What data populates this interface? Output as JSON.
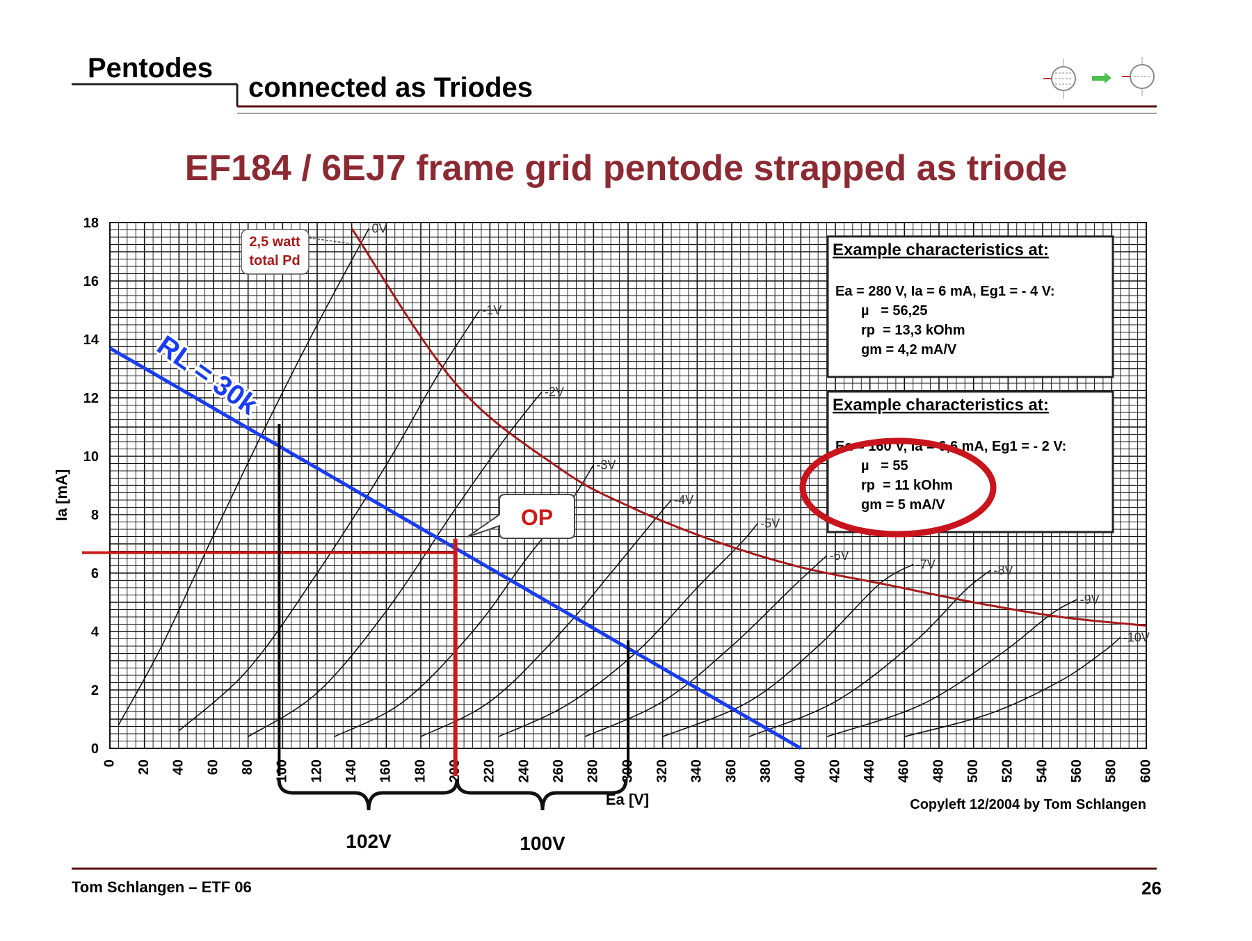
{
  "header": {
    "title": "Pentodes",
    "subtitle": "connected as Triodes",
    "logo_icon": "pentode-to-triode-icon"
  },
  "chart_data": {
    "type": "line",
    "title": "EF184 / 6EJ7 frame grid pentode strapped as triode",
    "xlabel": "Ea [V]",
    "ylabel": "Ia [mA]",
    "xlim": [
      0,
      600
    ],
    "ylim": [
      0,
      18
    ],
    "x_ticks": [
      0,
      20,
      40,
      60,
      80,
      100,
      120,
      140,
      160,
      180,
      200,
      220,
      240,
      260,
      280,
      300,
      320,
      340,
      360,
      380,
      400,
      420,
      440,
      460,
      480,
      500,
      520,
      540,
      560,
      580,
      600
    ],
    "y_ticks": [
      0,
      2,
      4,
      6,
      8,
      10,
      12,
      14,
      16,
      18
    ],
    "grid": true,
    "series": [
      {
        "name": "0V",
        "color": "#111111",
        "x": [
          5,
          30,
          60,
          90,
          120,
          150
        ],
        "y": [
          0.8,
          3.5,
          7.3,
          11.0,
          14.5,
          17.8
        ]
      },
      {
        "name": "-1V",
        "color": "#111111",
        "x": [
          40,
          80,
          120,
          160,
          190,
          214
        ],
        "y": [
          0.6,
          2.7,
          6.0,
          9.7,
          12.8,
          15.0
        ]
      },
      {
        "name": "-2V",
        "color": "#111111",
        "x": [
          80,
          120,
          160,
          200,
          230,
          250
        ],
        "y": [
          0.4,
          1.9,
          4.7,
          8.2,
          10.7,
          12.2
        ]
      },
      {
        "name": "-3V",
        "color": "#111111",
        "x": [
          130,
          170,
          210,
          240,
          265,
          280
        ],
        "y": [
          0.4,
          1.6,
          4.0,
          6.4,
          8.3,
          9.7
        ]
      },
      {
        "name": "-4V",
        "color": "#111111",
        "x": [
          180,
          220,
          260,
          290,
          315,
          325
        ],
        "y": [
          0.4,
          1.6,
          3.9,
          6.0,
          7.8,
          8.5
        ]
      },
      {
        "name": "-5V",
        "color": "#111111",
        "x": [
          225,
          265,
          305,
          340,
          365,
          375
        ],
        "y": [
          0.4,
          1.5,
          3.3,
          5.5,
          7.0,
          7.7
        ]
      },
      {
        "name": "-6V",
        "color": "#111111",
        "x": [
          275,
          320,
          360,
          395,
          415
        ],
        "y": [
          0.4,
          1.6,
          3.5,
          5.5,
          6.6
        ]
      },
      {
        "name": "-7V",
        "color": "#111111",
        "x": [
          320,
          370,
          410,
          445,
          465
        ],
        "y": [
          0.4,
          1.6,
          3.5,
          5.6,
          6.3
        ]
      },
      {
        "name": "-8V",
        "color": "#111111",
        "x": [
          370,
          420,
          465,
          495,
          510
        ],
        "y": [
          0.4,
          1.6,
          3.6,
          5.4,
          6.1
        ]
      },
      {
        "name": "-9V",
        "color": "#111111",
        "x": [
          415,
          470,
          515,
          545,
          560
        ],
        "y": [
          0.4,
          1.5,
          3.2,
          4.6,
          5.1
        ]
      },
      {
        "name": "-10V",
        "color": "#111111",
        "x": [
          460,
          510,
          550,
          575,
          585
        ],
        "y": [
          0.4,
          1.2,
          2.3,
          3.3,
          3.8
        ]
      }
    ],
    "pd_curve": {
      "color": "#a51a1a",
      "x": [
        140,
        200,
        260,
        300,
        350,
        400,
        450,
        500,
        550,
        600
      ],
      "y": [
        17.8,
        12.5,
        9.6,
        8.3,
        7.1,
        6.2,
        5.6,
        5.0,
        4.5,
        4.2
      ]
    },
    "load_line": {
      "label": "RL = 30k",
      "color": "#1a3df0",
      "x": [
        0,
        400
      ],
      "y": [
        13.7,
        0
      ]
    },
    "op_point": {
      "label": "OP",
      "x": 200,
      "y": 6.7,
      "color": "#cc1a1a"
    },
    "markers": [
      {
        "x": 98,
        "y_top": 11.1,
        "color": "#000000"
      },
      {
        "x": 300,
        "y_top": 3.7,
        "color": "#000000"
      }
    ],
    "callout_pd": {
      "line1": "2,5 watt",
      "line2": "total Pd"
    },
    "swing_labels": [
      "102V",
      "100V"
    ],
    "copyright": "Copyleft 12/2004 by Tom Schlangen",
    "box1": {
      "heading": "Example characteristics at:",
      "condition": "Ea = 280 V, Ia = 6 mA, Eg1 = - 4 V:",
      "mu": "µ   = 56,25",
      "rp": "rp  = 13,3 kOhm",
      "gm": "gm = 4,2 mA/V"
    },
    "box2": {
      "heading": "Example characteristics at:",
      "condition": "Ea = 160 V, Ia = 6,6 mA, Eg1 = - 2 V:",
      "mu": "µ   = 55",
      "rp": "rp  = 11 kOhm",
      "gm": "gm = 5 mA/V"
    },
    "highlight_color": "#c8141c"
  },
  "footer": {
    "left": "Tom Schlangen – ETF 06",
    "page": "26"
  }
}
